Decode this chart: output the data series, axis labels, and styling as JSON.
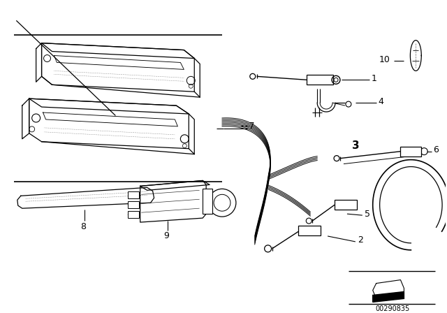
{
  "background_color": "#ffffff",
  "image_number": "00290835",
  "line_color": "#000000",
  "dot_color": "#666666",
  "fig_width": 6.4,
  "fig_height": 4.48,
  "dpi": 100,
  "sep_line1": [
    [
      0.03,
      0.895
    ],
    [
      0.5,
      0.895
    ]
  ],
  "sep_line2": [
    [
      0.03,
      0.565
    ],
    [
      0.5,
      0.565
    ]
  ],
  "label_fontsize": 9,
  "num_fontsize": 8
}
